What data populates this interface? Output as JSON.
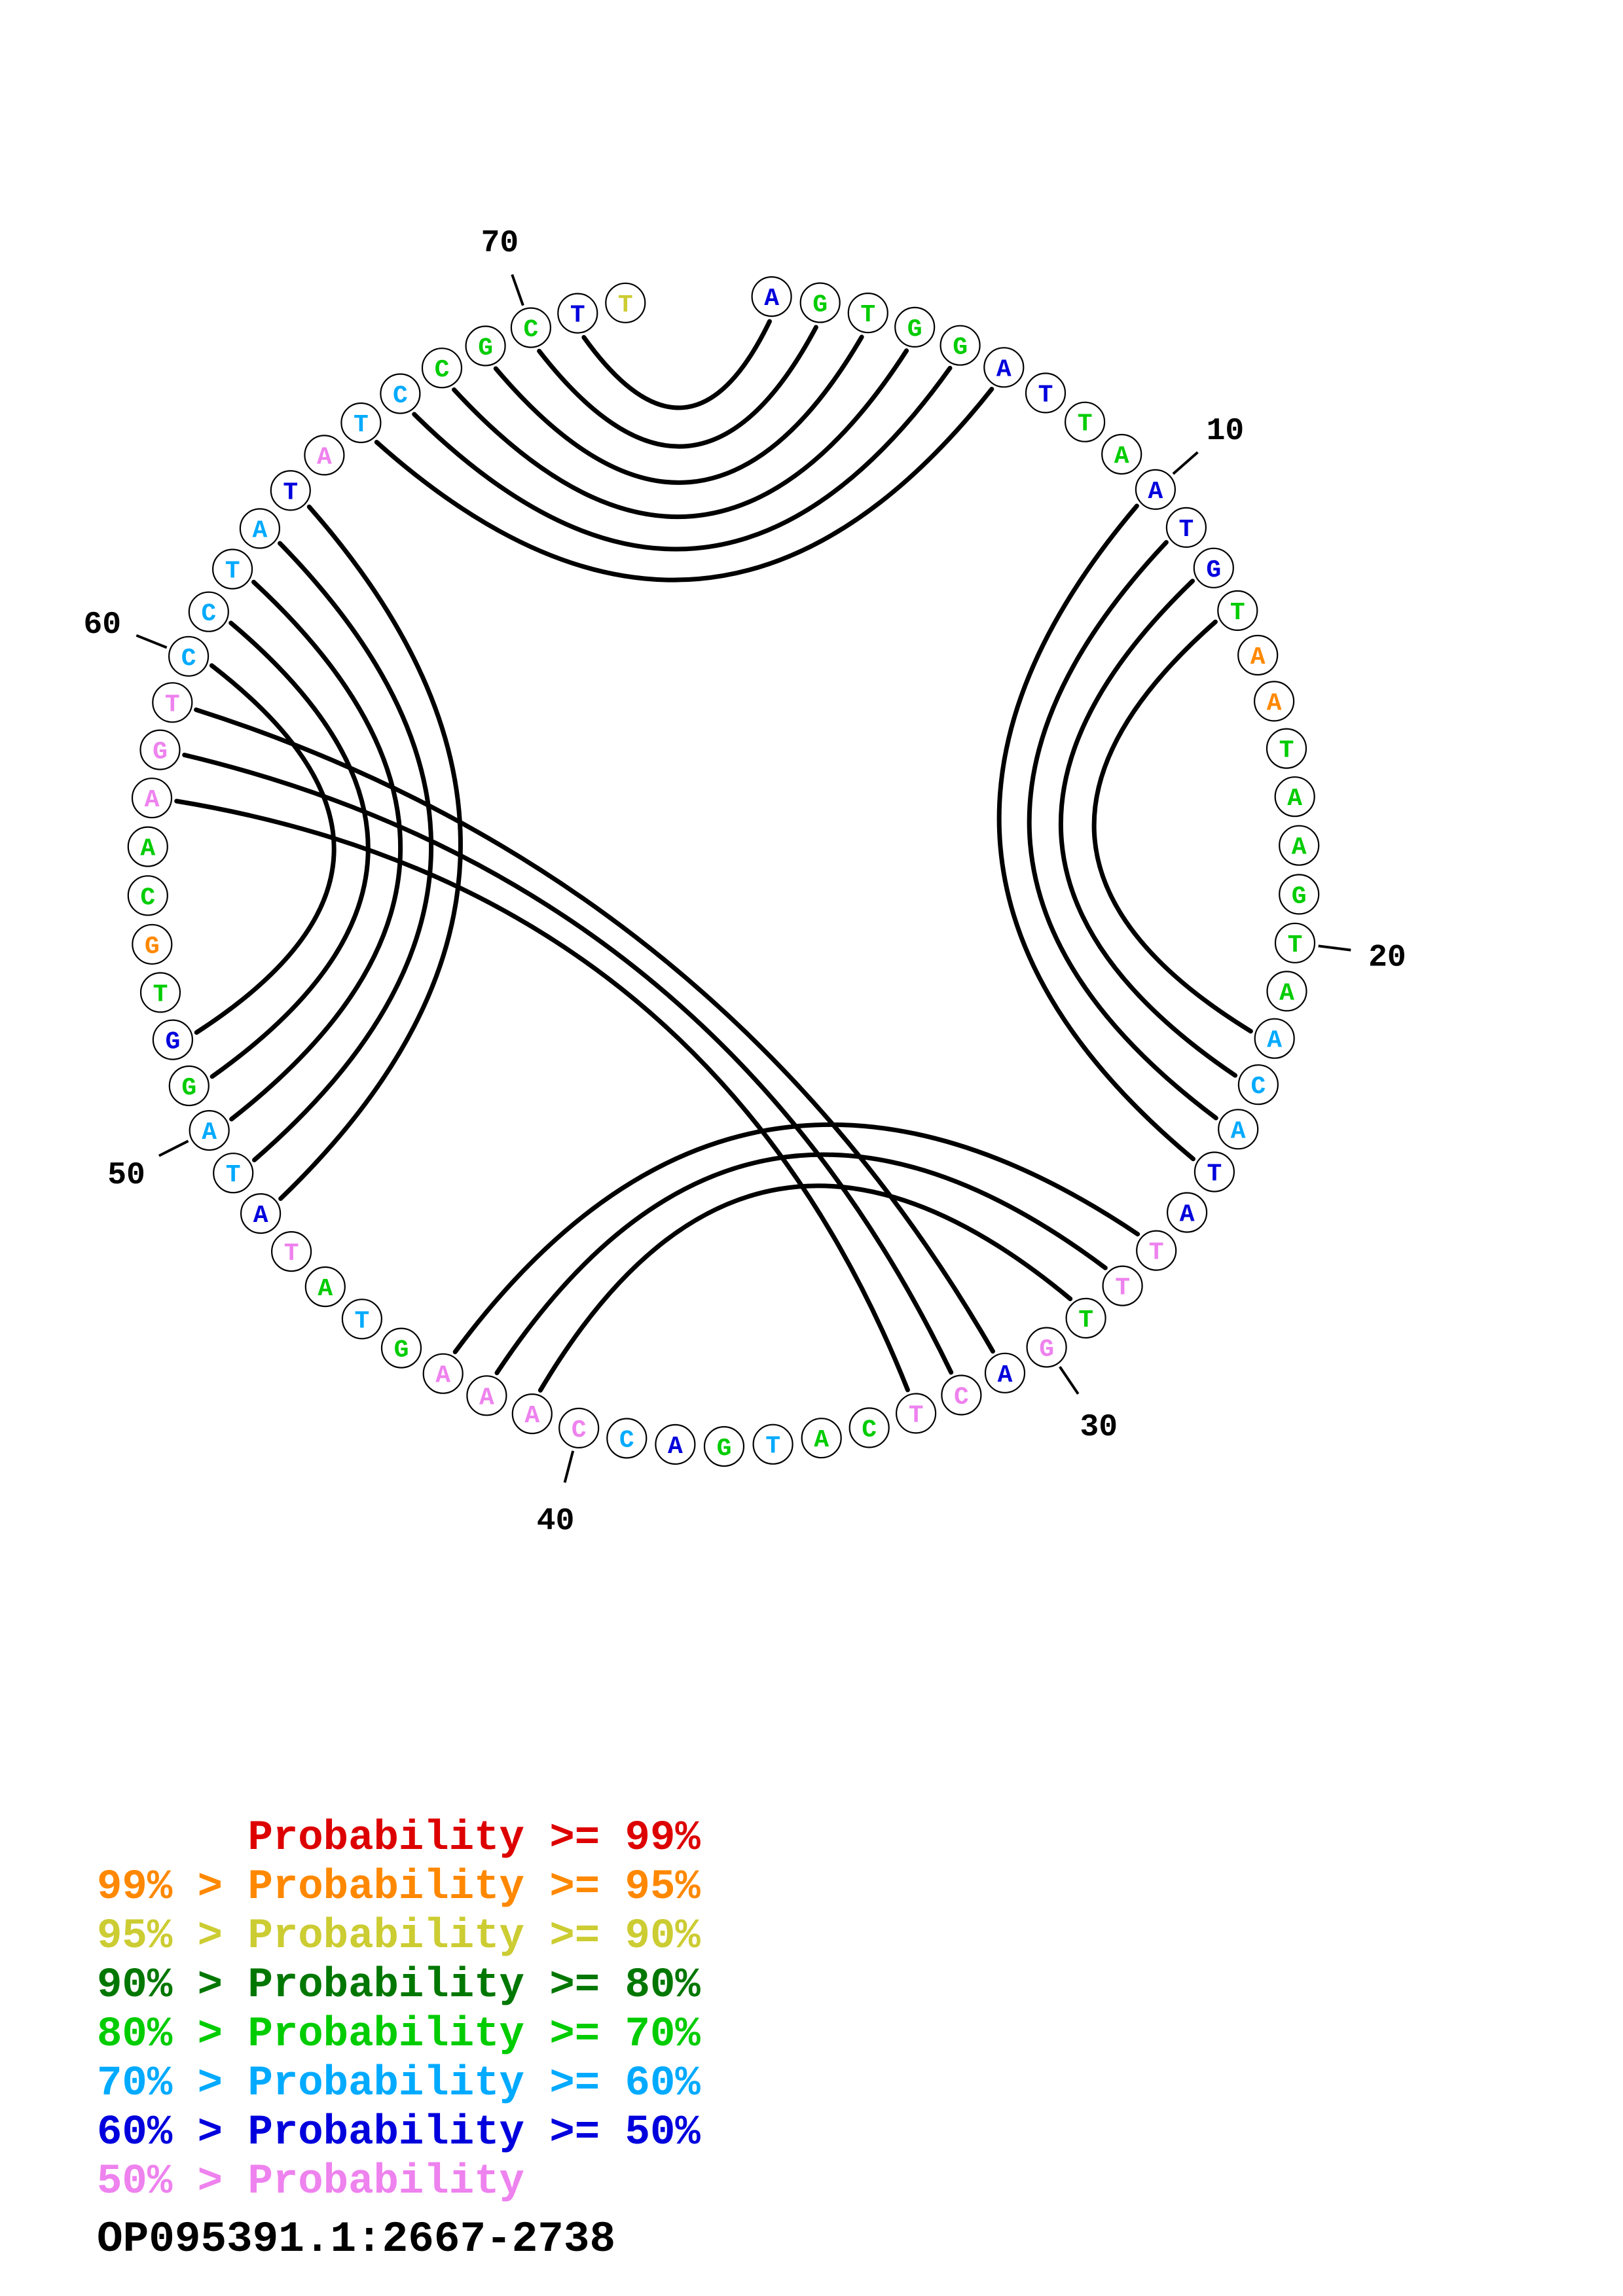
{
  "title": "OP095391.1:2667-2738",
  "legend": {
    "rows": [
      {
        "text": "      Probability >= 99%",
        "color": "#dd0000"
      },
      {
        "text": "99% > Probability >= 95%",
        "color": "#ff8800"
      },
      {
        "text": "95% > Probability >= 90%",
        "color": "#cccc33"
      },
      {
        "text": "90% > Probability >= 80%",
        "color": "#007700"
      },
      {
        "text": "80% > Probability >= 70%",
        "color": "#00cc00"
      },
      {
        "text": "70% > Probability >= 60%",
        "color": "#00aaff"
      },
      {
        "text": "60% > Probability >= 50%",
        "color": "#0000dd"
      },
      {
        "text": "50% > Probability",
        "color": "#ee82ee"
      }
    ]
  },
  "chart_data": {
    "type": "circular-base-pair-probability-plot",
    "title": "OP095391.1:2667-2738",
    "length": 72,
    "sequence": "AGTGGATTAATGTAATAAGTAACATATTTGACTCATGACCAAAGTATATAGGTGCAAGTCCTATATCCGCTT",
    "number_labels": [
      10,
      20,
      30,
      40,
      50,
      60,
      70
    ],
    "pairs": [
      [
        1,
        71
      ],
      [
        2,
        70
      ],
      [
        3,
        69
      ],
      [
        4,
        68
      ],
      [
        5,
        67
      ],
      [
        6,
        66
      ],
      [
        10,
        25
      ],
      [
        11,
        24
      ],
      [
        12,
        23
      ],
      [
        13,
        22
      ],
      [
        27,
        43
      ],
      [
        28,
        42
      ],
      [
        29,
        41
      ],
      [
        31,
        59
      ],
      [
        32,
        58
      ],
      [
        33,
        57
      ],
      [
        48,
        64
      ],
      [
        49,
        63
      ],
      [
        50,
        62
      ],
      [
        51,
        61
      ],
      [
        52,
        60
      ]
    ],
    "class_colors": {
      "B": "#0000dd",
      "S": "#00aaff",
      "G": "#00cc00",
      "O": "#ff8800",
      "P": "#ee82ee",
      "Y": "#cccc33"
    },
    "class_meaning": {
      "B": "60% > Probability >= 50%",
      "S": "70% > Probability >= 60%",
      "G": "80% > Probability >= 70%",
      "O": "99% > Probability >= 95%",
      "P": "50% > Probability",
      "Y": "95% > Probability >= 90%"
    },
    "nucleotide_classes": [
      "B",
      "G",
      "G",
      "G",
      "G",
      "B",
      "B",
      "G",
      "G",
      "B",
      "B",
      "B",
      "G",
      "O",
      "O",
      "G",
      "G",
      "G",
      "G",
      "G",
      "G",
      "S",
      "S",
      "S",
      "B",
      "B",
      "P",
      "P",
      "G",
      "P",
      "B",
      "P",
      "P",
      "G",
      "G",
      "S",
      "G",
      "B",
      "S",
      "P",
      "P",
      "P",
      "P",
      "G",
      "S",
      "G",
      "P",
      "B",
      "S",
      "S",
      "G",
      "B",
      "G",
      "O",
      "G",
      "G",
      "P",
      "P",
      "P",
      "S",
      "S",
      "S",
      "S",
      "B",
      "P",
      "S",
      "S",
      "G",
      "G",
      "G",
      "B",
      "Y"
    ]
  }
}
